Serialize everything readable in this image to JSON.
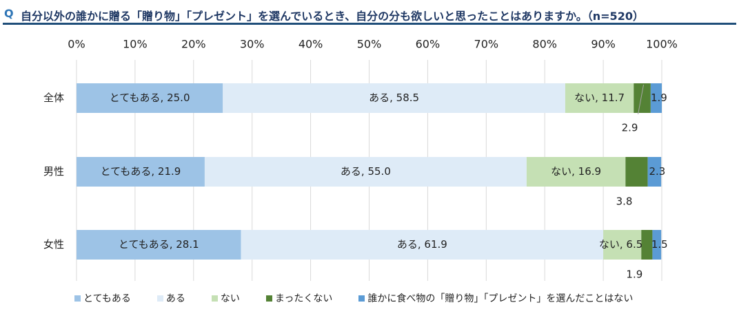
{
  "title": {
    "q": "Q",
    "text": "自分以外の誰かに贈る「贈り物」「プレゼント」を選んでいるとき、自分の分も欲しいと思ったことはありますか。（n=520）"
  },
  "chart_data": {
    "type": "stacked-bar-horizontal",
    "title": "自分以外の誰かに贈る「贈り物」「プレゼント」を選んでいるとき、自分の分も欲しいと思ったことはありますか。（n=520）",
    "categories": [
      "全体",
      "男性",
      "女性"
    ],
    "xlim": [
      0,
      100
    ],
    "xticks": [
      "0%",
      "10%",
      "20%",
      "30%",
      "40%",
      "50%",
      "60%",
      "70%",
      "80%",
      "90%",
      "100%"
    ],
    "grid": "vertical",
    "legend_position": "bottom",
    "series": [
      {
        "name": "とてもある",
        "color": "#9dc3e6",
        "values": [
          25.0,
          21.9,
          28.1
        ],
        "labels": [
          "とてもある, 25.0",
          "とてもある, 21.9",
          "とてもある, 28.1"
        ]
      },
      {
        "name": "ある",
        "color": "#deebf7",
        "values": [
          58.5,
          55.0,
          61.9
        ],
        "labels": [
          "ある, 58.5",
          "ある, 55.0",
          "ある, 61.9"
        ]
      },
      {
        "name": "ない",
        "color": "#c5e0b4",
        "values": [
          11.7,
          16.9,
          6.5
        ],
        "labels": [
          "ない, 11.7",
          "ない, 16.9",
          "ない, 6.5"
        ]
      },
      {
        "name": "まったくない",
        "color": "#548235",
        "values": [
          2.9,
          3.8,
          1.9
        ],
        "labels": [
          "2.9",
          "3.8",
          "1.9"
        ]
      },
      {
        "name": "誰かに食べ物の「贈り物」「プレゼント」を選んだことはない",
        "color": "#5b9bd5",
        "values": [
          1.9,
          2.3,
          1.5
        ],
        "labels": [
          "1.9",
          "2.3",
          "1.5"
        ]
      }
    ]
  }
}
